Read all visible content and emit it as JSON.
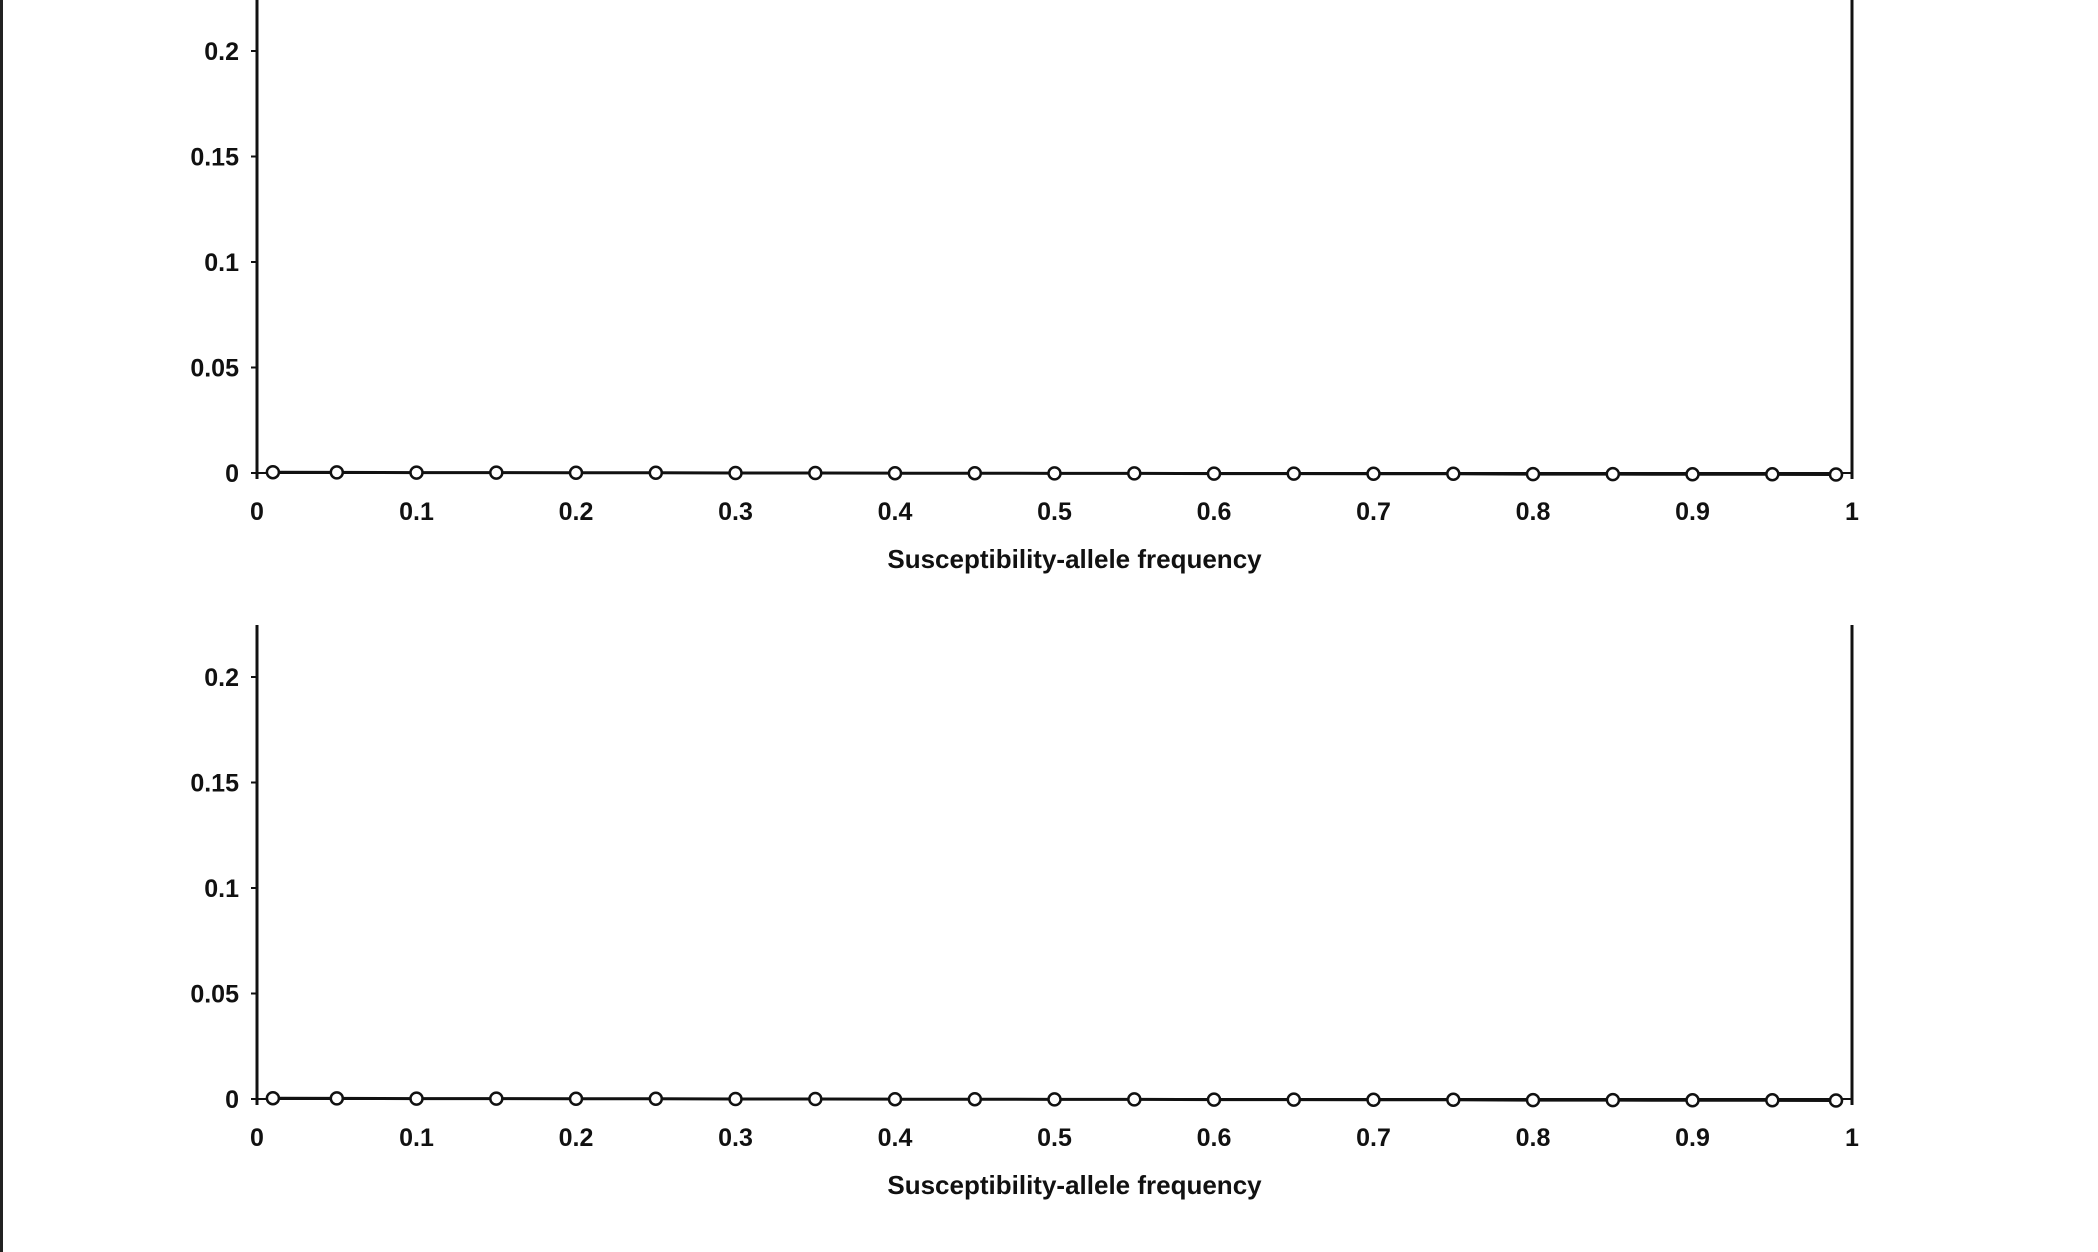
{
  "chart_data": [
    {
      "type": "line",
      "title": "",
      "xlabel": "Susceptibility-allele frequency",
      "ylabel": "",
      "xlim": [
        0,
        1
      ],
      "ylim": [
        0,
        0.22
      ],
      "x_ticks": [
        "0",
        "0.1",
        "0.2",
        "0.3",
        "0.4",
        "0.5",
        "0.6",
        "0.7",
        "0.8",
        "0.9",
        "1"
      ],
      "y_ticks": [
        "0",
        "0.05",
        "0.1",
        "0.15",
        "0.2"
      ],
      "grid": false,
      "series": [
        {
          "marker": "open-circle",
          "color": "#111111",
          "x": [
            0.01,
            0.05,
            0.1,
            0.15,
            0.2,
            0.25,
            0.3,
            0.35,
            0.4,
            0.45,
            0.5,
            0.55,
            0.6,
            0.65,
            0.7,
            0.75,
            0.8,
            0.85,
            0.9,
            0.95,
            0.99
          ],
          "y": [
            0.0004,
            0.0003,
            0.0002,
            0.0002,
            0.0001,
            0.0001,
            0.0,
            0.0,
            -0.0001,
            -0.0001,
            -0.0002,
            -0.0002,
            -0.0003,
            -0.0003,
            -0.0004,
            -0.0004,
            -0.0005,
            -0.0005,
            -0.0006,
            -0.0006,
            -0.0007
          ]
        }
      ]
    },
    {
      "type": "line",
      "title": "",
      "xlabel": "Susceptibility-allele frequency",
      "ylabel": "",
      "xlim": [
        0,
        1
      ],
      "ylim": [
        0,
        0.22
      ],
      "x_ticks": [
        "0",
        "0.1",
        "0.2",
        "0.3",
        "0.4",
        "0.5",
        "0.6",
        "0.7",
        "0.8",
        "0.9",
        "1"
      ],
      "y_ticks": [
        "0",
        "0.05",
        "0.1",
        "0.15",
        "0.2"
      ],
      "grid": false,
      "series": [
        {
          "marker": "open-circle",
          "color": "#111111",
          "x": [
            0.01,
            0.05,
            0.1,
            0.15,
            0.2,
            0.25,
            0.3,
            0.35,
            0.4,
            0.45,
            0.5,
            0.55,
            0.6,
            0.65,
            0.7,
            0.75,
            0.8,
            0.85,
            0.9,
            0.95,
            0.99
          ],
          "y": [
            0.0004,
            0.0003,
            0.0002,
            0.0002,
            0.0001,
            0.0001,
            0.0,
            0.0,
            -0.0001,
            -0.0001,
            -0.0002,
            -0.0002,
            -0.0003,
            -0.0003,
            -0.0004,
            -0.0004,
            -0.0005,
            -0.0005,
            -0.0006,
            -0.0006,
            -0.0007
          ]
        }
      ]
    }
  ]
}
